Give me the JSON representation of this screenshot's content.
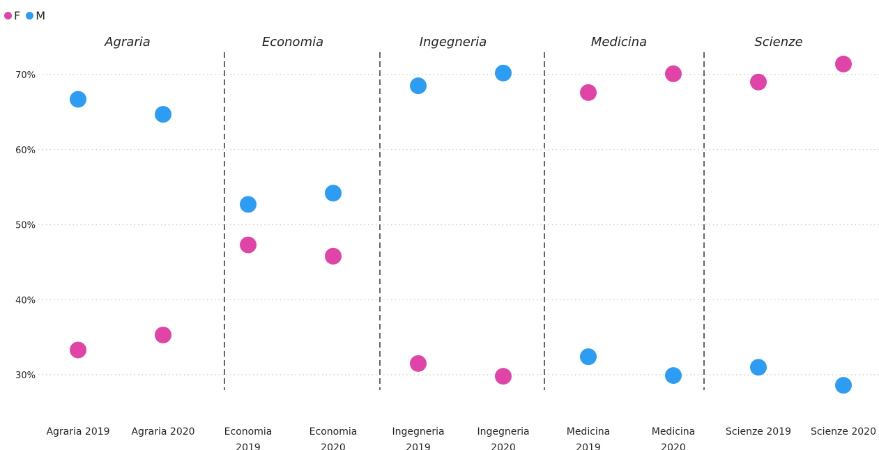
{
  "legend": [
    {
      "label": "F",
      "color": "#E044A7"
    },
    {
      "label": "M",
      "color": "#2D9CF3"
    }
  ],
  "chart_data": {
    "type": "scatter",
    "groups": [
      "Agraria",
      "Economia",
      "Ingegneria",
      "Medicina",
      "Scienze"
    ],
    "categories": [
      [
        "Agraria 2019"
      ],
      [
        "Agraria 2020"
      ],
      [
        "Economia",
        "2019"
      ],
      [
        "Economia",
        "2020"
      ],
      [
        "Ingegneria",
        "2019"
      ],
      [
        "Ingegneria",
        "2020"
      ],
      [
        "Medicina",
        "2019"
      ],
      [
        "Medicina",
        "2020"
      ],
      [
        "Scienze 2019"
      ],
      [
        "Scienze 2020"
      ]
    ],
    "series": [
      {
        "name": "F",
        "color": "#E044A7",
        "values": [
          33.3,
          35.3,
          47.3,
          45.8,
          31.5,
          29.8,
          67.6,
          70.1,
          69.0,
          71.4
        ]
      },
      {
        "name": "M",
        "color": "#2D9CF3",
        "values": [
          66.7,
          64.7,
          52.7,
          54.2,
          68.5,
          70.2,
          32.4,
          29.9,
          31.0,
          28.6
        ]
      }
    ],
    "y_ticks": [
      "30%",
      "40%",
      "50%",
      "60%",
      "70%"
    ],
    "y_tick_values": [
      30,
      40,
      50,
      60,
      70
    ],
    "ylim": [
      25.7,
      75.5
    ],
    "grid": true,
    "legend_position": "top-left"
  }
}
